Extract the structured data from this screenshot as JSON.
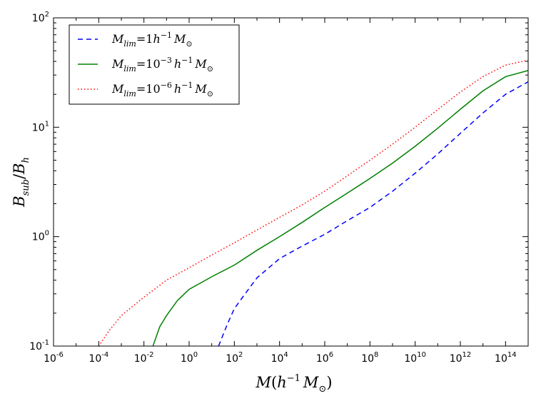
{
  "chart_data": {
    "type": "line",
    "xscale": "log",
    "yscale": "log",
    "xlim": [
      1e-06,
      1000000000000000.0
    ],
    "ylim": [
      0.1,
      100
    ],
    "x_ticks": [
      {
        "base": "10",
        "exp": "-6"
      },
      {
        "base": "10",
        "exp": "-4"
      },
      {
        "base": "10",
        "exp": "-2"
      },
      {
        "base": "10",
        "exp": "0"
      },
      {
        "base": "10",
        "exp": "2"
      },
      {
        "base": "10",
        "exp": "4"
      },
      {
        "base": "10",
        "exp": "6"
      },
      {
        "base": "10",
        "exp": "8"
      },
      {
        "base": "10",
        "exp": "10"
      },
      {
        "base": "10",
        "exp": "12"
      },
      {
        "base": "10",
        "exp": "14"
      }
    ],
    "y_ticks": [
      {
        "base": "10",
        "exp": "-1"
      },
      {
        "base": "10",
        "exp": "0"
      },
      {
        "base": "10",
        "exp": "1"
      },
      {
        "base": "10",
        "exp": "2"
      }
    ],
    "xlabel": {
      "main": "M",
      "open": "(",
      "h": "h",
      "h_exp": "−1",
      "m": "M",
      "sun": "⊙",
      "close": ")"
    },
    "ylabel": {
      "num": "B",
      "num_sub": "sub",
      "slash": "/",
      "den": "B",
      "den_sub": "h"
    },
    "legend": {
      "position": "upper left"
    },
    "grid": false,
    "series": [
      {
        "name": "M_lim = 1 h^-1 M_sun",
        "label_parts": {
          "m": "M",
          "sub": "lim",
          "eq": "=",
          "base": "1",
          "exp": "",
          "h": "h",
          "h_exp": "−1",
          "m2": "M",
          "sun": "⊙"
        },
        "color": "#0000ff",
        "style": "dashed",
        "x": [
          20,
          50,
          100,
          300,
          1000,
          10000.0,
          100000.0,
          1000000.0,
          10000000.0,
          100000000.0,
          1000000000.0,
          10000000000.0,
          100000000000.0,
          1000000000000.0,
          10000000000000.0,
          100000000000000.0,
          1000000000000000.0
        ],
        "y": [
          0.1,
          0.16,
          0.22,
          0.3,
          0.42,
          0.63,
          0.82,
          1.05,
          1.4,
          1.85,
          2.6,
          3.8,
          5.7,
          8.8,
          13.5,
          20,
          26
        ]
      },
      {
        "name": "M_lim = 10^-3 h^-1 M_sun",
        "label_parts": {
          "m": "M",
          "sub": "lim",
          "eq": "=",
          "base": "10",
          "exp": "−3",
          "h": "h",
          "h_exp": "−1",
          "m2": "M",
          "sun": "⊙"
        },
        "color": "#008000",
        "style": "solid",
        "x": [
          0.025,
          0.05,
          0.1,
          0.3,
          1,
          10,
          100,
          1000,
          10000.0,
          100000.0,
          1000000.0,
          10000000.0,
          100000000.0,
          1000000000.0,
          10000000000.0,
          100000000000.0,
          1000000000000.0,
          10000000000000.0,
          100000000000000.0,
          1000000000000000.0
        ],
        "y": [
          0.1,
          0.15,
          0.19,
          0.26,
          0.33,
          0.43,
          0.55,
          0.75,
          1.0,
          1.35,
          1.85,
          2.5,
          3.4,
          4.7,
          6.7,
          9.8,
          14.6,
          21.5,
          29,
          33
        ]
      },
      {
        "name": "M_lim = 10^-6 h^-1 M_sun",
        "label_parts": {
          "m": "M",
          "sub": "lim",
          "eq": "=",
          "base": "10",
          "exp": "−6",
          "h": "h",
          "h_exp": "−1",
          "m2": "M",
          "sun": "⊙"
        },
        "color": "#ff0000",
        "style": "dotted",
        "x": [
          0.0001,
          0.0003,
          0.001,
          0.01,
          0.1,
          1,
          10,
          100,
          1000,
          10000.0,
          100000.0,
          1000000.0,
          10000000.0,
          100000000.0,
          1000000000.0,
          10000000000.0,
          100000000000.0,
          1000000000000.0,
          10000000000000.0,
          100000000000000.0,
          1000000000000000.0
        ],
        "y": [
          0.1,
          0.14,
          0.19,
          0.28,
          0.4,
          0.52,
          0.68,
          0.88,
          1.15,
          1.5,
          1.95,
          2.6,
          3.6,
          5.0,
          7.0,
          10.0,
          14.5,
          21,
          29,
          37,
          41
        ]
      }
    ]
  }
}
